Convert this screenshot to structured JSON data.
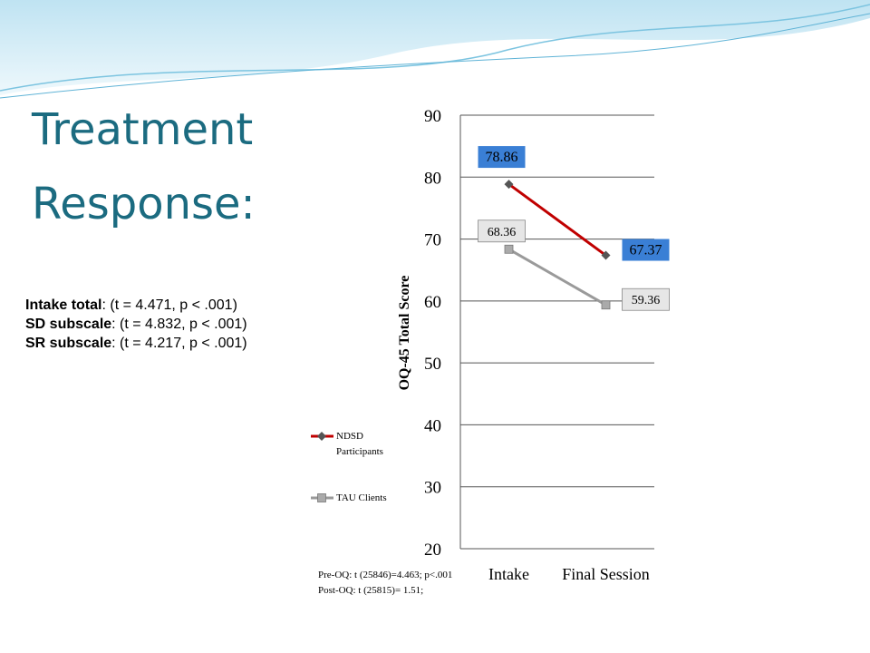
{
  "title": "Treatment Response:",
  "stats": [
    {
      "label": "Intake total",
      "text": ": (t = 4.471, p < .001)"
    },
    {
      "label": "SD subscale",
      "text": ": (t = 4.832, p < .001)"
    },
    {
      "label": "SR subscale",
      "text": ": (t = 4.217, p < .001)"
    }
  ],
  "chart_data": {
    "type": "line",
    "y_label": "OQ-45 Total Score",
    "categories": [
      "Intake",
      "Final Session"
    ],
    "series": [
      {
        "name": "NDSD Participants",
        "color": "#c00000",
        "marker": "diamond",
        "label_fill": "#3a7fd5",
        "values": [
          78.86,
          67.37
        ]
      },
      {
        "name": "TAU Clients",
        "color": "#9a9a9a",
        "marker": "square",
        "label_fill": "#e6e6e6",
        "values": [
          68.36,
          59.36
        ]
      }
    ],
    "ylim": [
      20,
      90
    ],
    "yticks": [
      20,
      30,
      40,
      50,
      60,
      70,
      80,
      90
    ],
    "grid": true,
    "notes": [
      "Pre-OQ: t (25846)=4.463; p<.001",
      "Post-OQ: t (25815)= 1.51;"
    ]
  }
}
